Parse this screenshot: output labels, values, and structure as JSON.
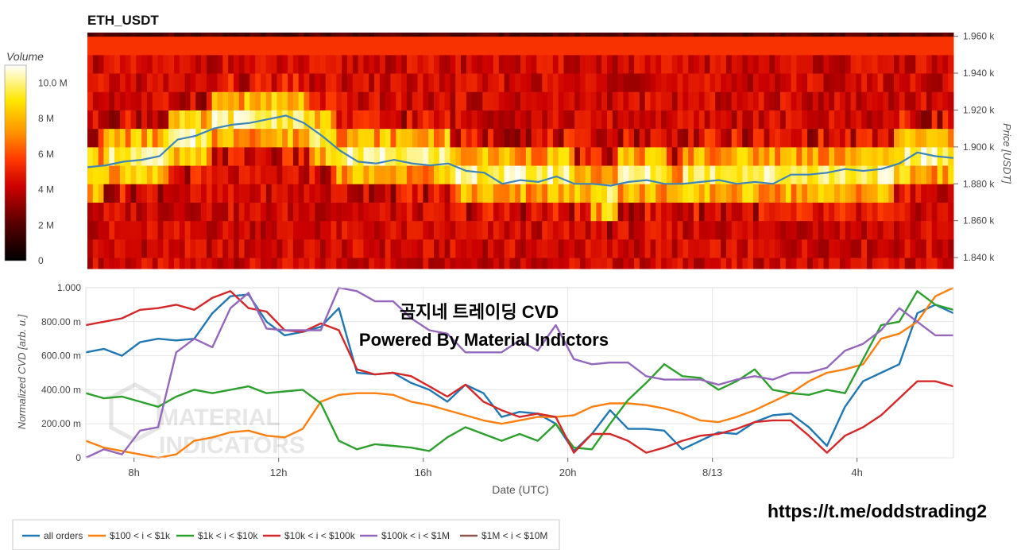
{
  "heatmap": {
    "title": "ETH_USDT",
    "colorbar_title": "Volume",
    "colorbar_ticks": [
      "0",
      "2 M",
      "4 M",
      "6 M",
      "8 M",
      "10.0 M"
    ],
    "price_axis_label": "Price [USDT]",
    "price_ticks": [
      "1.840 k",
      "1.860 k",
      "1.880 k",
      "1.900 k",
      "1.920 k",
      "1.940 k",
      "1.960 k"
    ]
  },
  "cvd": {
    "overlay_title": "곰지네 트레이딩 CVD",
    "overlay_subtitle": "Powered By Material Indictors",
    "y_axis_label": "Normalized CVD [arb. u.]",
    "x_axis_label": "Date (UTC)",
    "y_ticks": [
      "0",
      "200.00 m",
      "400.00 m",
      "600.00 m",
      "800.00 m",
      "1.000"
    ],
    "x_ticks": [
      "8h",
      "12h",
      "16h",
      "20h",
      "8/13",
      "4h"
    ]
  },
  "watermark": {
    "line1": "MATERIAL",
    "line2": "INDICATORS"
  },
  "link_text": "https://t.me/oddstrading2",
  "chart_data": [
    {
      "type": "heatmap",
      "title": "ETH_USDT",
      "x_range": [
        "2023-08-12 06:40",
        "2023-08-13 06:40"
      ],
      "price_bins": [
        1835,
        1845,
        1855,
        1865,
        1875,
        1885,
        1895,
        1905,
        1915,
        1925,
        1935,
        1945,
        1955,
        1965
      ],
      "value_range": [
        0,
        11000000
      ],
      "colorscale": "hot",
      "colorbar_label": "Volume",
      "ylabel": "Price [USDT]",
      "ylim": [
        1834,
        1962
      ],
      "price_line": {
        "color": "#3d85b8",
        "x_hours": [
          0,
          0.5,
          1,
          1.5,
          2,
          2.5,
          3,
          3.5,
          4,
          4.5,
          5,
          5.5,
          6,
          6.5,
          7,
          7.5,
          8,
          8.5,
          9,
          9.5,
          10,
          10.5,
          11,
          11.5,
          12,
          12.5,
          13,
          13.5,
          14,
          14.5,
          15,
          15.5,
          16,
          16.5,
          17,
          17.5,
          18,
          18.5,
          19,
          19.5,
          20,
          20.5,
          21,
          21.5,
          22,
          22.5,
          23,
          23.5,
          24
        ],
        "price": [
          1889,
          1890,
          1892,
          1893,
          1895,
          1904,
          1906,
          1910,
          1912,
          1913,
          1915,
          1917,
          1913,
          1906,
          1898,
          1892,
          1891,
          1893,
          1891,
          1890,
          1891,
          1887,
          1886,
          1880,
          1882,
          1881,
          1884,
          1880,
          1880,
          1879,
          1881,
          1882,
          1880,
          1880,
          1881,
          1882,
          1880,
          1881,
          1880,
          1885,
          1885,
          1886,
          1888,
          1887,
          1888,
          1891,
          1897,
          1895,
          1894
        ]
      }
    },
    {
      "type": "line",
      "xlabel": "Date (UTC)",
      "ylabel": "Normalized CVD [arb. u.]",
      "xlim": [
        "2023-08-12 06:40",
        "2023-08-13 06:40"
      ],
      "ylim": [
        0,
        1
      ],
      "x_hours": [
        0,
        0.5,
        1,
        1.5,
        2,
        2.5,
        3,
        3.5,
        4,
        4.5,
        5,
        5.5,
        6,
        6.5,
        7,
        7.5,
        8,
        8.5,
        9,
        9.5,
        10,
        10.5,
        11,
        11.5,
        12,
        12.5,
        13,
        13.5,
        14,
        14.5,
        15,
        15.5,
        16,
        16.5,
        17,
        17.5,
        18,
        18.5,
        19,
        19.5,
        20,
        20.5,
        21,
        21.5,
        22,
        22.5,
        23,
        23.5,
        24
      ],
      "series": [
        {
          "name": "all orders",
          "color": "#1f77b4",
          "values": [
            0.62,
            0.64,
            0.6,
            0.68,
            0.7,
            0.69,
            0.7,
            0.85,
            0.95,
            0.96,
            0.8,
            0.72,
            0.74,
            0.77,
            0.88,
            0.5,
            0.49,
            0.5,
            0.44,
            0.4,
            0.33,
            0.43,
            0.38,
            0.24,
            0.27,
            0.26,
            0.2,
            0.04,
            0.14,
            0.28,
            0.17,
            0.17,
            0.16,
            0.05,
            0.1,
            0.15,
            0.14,
            0.21,
            0.25,
            0.26,
            0.18,
            0.07,
            0.3,
            0.45,
            0.5,
            0.55,
            0.85,
            0.9,
            0.85
          ]
        },
        {
          "name": "$100 < i < $1k",
          "color": "#ff7f0e",
          "values": [
            0.1,
            0.06,
            0.04,
            0.02,
            0.0,
            0.02,
            0.1,
            0.12,
            0.15,
            0.16,
            0.13,
            0.12,
            0.17,
            0.33,
            0.37,
            0.38,
            0.38,
            0.37,
            0.33,
            0.31,
            0.28,
            0.25,
            0.22,
            0.2,
            0.22,
            0.24,
            0.24,
            0.25,
            0.3,
            0.32,
            0.32,
            0.31,
            0.29,
            0.26,
            0.22,
            0.21,
            0.24,
            0.28,
            0.33,
            0.38,
            0.45,
            0.5,
            0.52,
            0.55,
            0.7,
            0.73,
            0.8,
            0.95,
            1.0
          ]
        },
        {
          "name": "$1k < i < $10k",
          "color": "#2ca02c",
          "values": [
            0.38,
            0.35,
            0.36,
            0.33,
            0.3,
            0.36,
            0.4,
            0.38,
            0.4,
            0.42,
            0.38,
            0.39,
            0.4,
            0.32,
            0.1,
            0.05,
            0.08,
            0.07,
            0.06,
            0.04,
            0.12,
            0.18,
            0.14,
            0.1,
            0.14,
            0.1,
            0.2,
            0.06,
            0.05,
            0.2,
            0.34,
            0.44,
            0.55,
            0.48,
            0.47,
            0.4,
            0.45,
            0.52,
            0.4,
            0.38,
            0.37,
            0.4,
            0.38,
            0.58,
            0.78,
            0.8,
            0.98,
            0.9,
            0.87
          ]
        },
        {
          "name": "$10k < i < $100k",
          "color": "#d62728",
          "values": [
            0.78,
            0.8,
            0.82,
            0.87,
            0.88,
            0.9,
            0.87,
            0.94,
            0.98,
            0.88,
            0.86,
            0.75,
            0.74,
            0.79,
            0.75,
            0.52,
            0.49,
            0.5,
            0.48,
            0.42,
            0.36,
            0.43,
            0.33,
            0.28,
            0.24,
            0.26,
            0.24,
            0.03,
            0.14,
            0.14,
            0.1,
            0.03,
            0.06,
            0.1,
            0.13,
            0.14,
            0.17,
            0.21,
            0.22,
            0.22,
            0.13,
            0.03,
            0.13,
            0.18,
            0.25,
            0.35,
            0.45,
            0.45,
            0.42
          ]
        },
        {
          "name": "$100k < i < $1M",
          "color": "#9467bd",
          "values": [
            0.0,
            0.05,
            0.02,
            0.16,
            0.18,
            0.62,
            0.7,
            0.65,
            0.88,
            0.97,
            0.76,
            0.75,
            0.75,
            0.75,
            1.0,
            0.98,
            0.92,
            0.92,
            0.82,
            0.75,
            0.73,
            0.62,
            0.62,
            0.62,
            0.69,
            0.63,
            0.78,
            0.58,
            0.55,
            0.56,
            0.56,
            0.48,
            0.46,
            0.46,
            0.46,
            0.43,
            0.46,
            0.48,
            0.46,
            0.5,
            0.5,
            0.53,
            0.63,
            0.67,
            0.75,
            0.88,
            0.8,
            0.72,
            0.72
          ]
        },
        {
          "name": "$1M < i < $10M",
          "color": "#8c564b",
          "values": []
        }
      ]
    }
  ]
}
